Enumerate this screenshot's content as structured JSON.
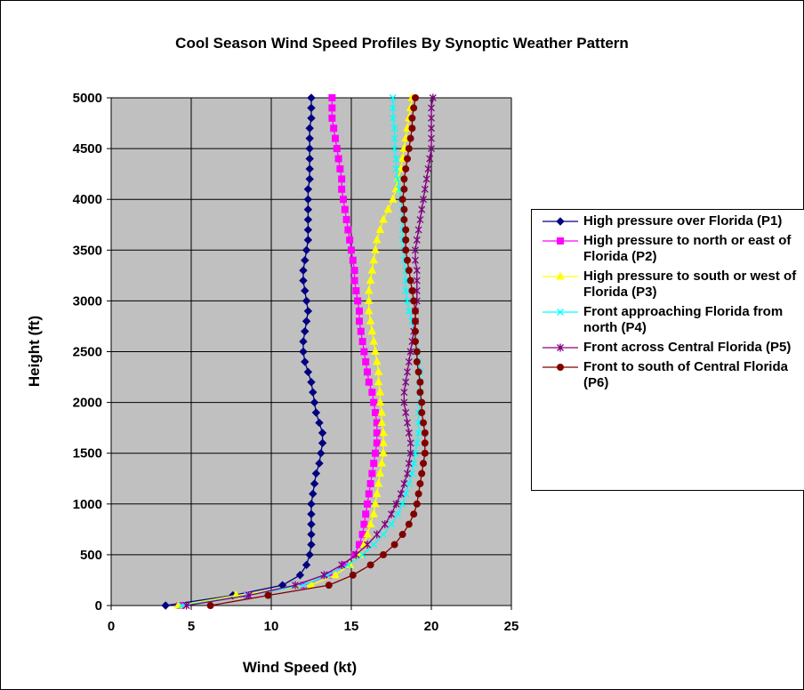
{
  "chart_data": {
    "type": "line",
    "title": "Cool Season Wind Speed Profiles By Synoptic Weather Pattern",
    "xlabel": "Wind Speed (kt)",
    "ylabel": "Height (ft)",
    "xlim": [
      0,
      25
    ],
    "xticks": [
      0,
      5,
      10,
      15,
      20,
      25
    ],
    "ylim": [
      0,
      5000
    ],
    "yticks": [
      0,
      500,
      1000,
      1500,
      2000,
      2500,
      3000,
      3500,
      4000,
      4500,
      5000
    ],
    "grid": true,
    "legend": "right",
    "background": "#c0c0c0",
    "y": [
      0,
      100,
      200,
      300,
      400,
      500,
      600,
      700,
      800,
      900,
      1000,
      1100,
      1200,
      1300,
      1400,
      1500,
      1600,
      1700,
      1800,
      1900,
      2000,
      2100,
      2200,
      2300,
      2400,
      2500,
      2600,
      2700,
      2800,
      2900,
      3000,
      3100,
      3200,
      3300,
      3400,
      3500,
      3600,
      3700,
      3800,
      3900,
      4000,
      4100,
      4200,
      4300,
      4400,
      4500,
      4600,
      4700,
      4800,
      4900,
      5000
    ],
    "series": [
      {
        "name": "High pressure over Florida (P1)",
        "color": "#000080",
        "marker": "diamond",
        "x": [
          3.4,
          7.6,
          10.7,
          11.8,
          12.2,
          12.4,
          12.5,
          12.5,
          12.5,
          12.5,
          12.5,
          12.6,
          12.7,
          12.8,
          13.0,
          13.1,
          13.2,
          13.2,
          13.0,
          12.8,
          12.7,
          12.6,
          12.5,
          12.3,
          12.1,
          12.0,
          12.0,
          12.1,
          12.2,
          12.3,
          12.2,
          12.1,
          12.0,
          12.0,
          12.1,
          12.2,
          12.3,
          12.3,
          12.3,
          12.3,
          12.3,
          12.3,
          12.4,
          12.4,
          12.4,
          12.4,
          12.4,
          12.4,
          12.5,
          12.5,
          12.5
        ]
      },
      {
        "name": "High pressure to north or east of Florida (P2)",
        "color": "#ff00ff",
        "marker": "square",
        "x": [
          4.3,
          8.5,
          12.0,
          13.6,
          14.6,
          15.2,
          15.5,
          15.7,
          15.8,
          15.9,
          16.0,
          16.1,
          16.2,
          16.3,
          16.4,
          16.5,
          16.6,
          16.6,
          16.6,
          16.5,
          16.4,
          16.3,
          16.1,
          16.0,
          15.9,
          15.8,
          15.7,
          15.6,
          15.5,
          15.5,
          15.4,
          15.3,
          15.2,
          15.2,
          15.1,
          15.0,
          14.9,
          14.8,
          14.7,
          14.6,
          14.5,
          14.4,
          14.4,
          14.3,
          14.2,
          14.1,
          14.0,
          13.9,
          13.8,
          13.8,
          13.8
        ]
      },
      {
        "name": "High pressure to south or west of Florida (P3)",
        "color": "#ffff00",
        "marker": "triangle",
        "x": [
          4.2,
          7.8,
          12.5,
          14.0,
          14.9,
          15.5,
          15.8,
          16.0,
          16.2,
          16.4,
          16.5,
          16.6,
          16.7,
          16.8,
          16.9,
          17.0,
          17.0,
          17.0,
          16.9,
          16.9,
          16.8,
          16.8,
          16.7,
          16.7,
          16.6,
          16.5,
          16.4,
          16.3,
          16.2,
          16.1,
          16.1,
          16.1,
          16.2,
          16.3,
          16.4,
          16.5,
          16.6,
          16.8,
          17.0,
          17.3,
          17.6,
          17.8,
          17.9,
          18.1,
          18.2,
          18.3,
          18.4,
          18.5,
          18.6,
          18.7,
          18.8
        ]
      },
      {
        "name": "Front approaching Florida from north (P4)",
        "color": "#00ffff",
        "marker": "cross",
        "x": [
          4.4,
          8.5,
          12.0,
          13.5,
          14.8,
          15.7,
          16.4,
          17.0,
          17.5,
          17.9,
          18.2,
          18.4,
          18.6,
          18.8,
          18.9,
          19.0,
          19.1,
          19.2,
          19.2,
          19.2,
          19.3,
          19.3,
          19.3,
          19.3,
          19.2,
          19.1,
          19.0,
          18.9,
          18.8,
          18.6,
          18.5,
          18.4,
          18.4,
          18.4,
          18.3,
          18.3,
          18.2,
          18.2,
          18.2,
          18.2,
          18.1,
          18.0,
          17.9,
          17.8,
          17.8,
          17.7,
          17.7,
          17.7,
          17.6,
          17.6,
          17.6
        ]
      },
      {
        "name": "Front across Central Florida (P5)",
        "color": "#800080",
        "marker": "star",
        "x": [
          4.7,
          8.6,
          11.5,
          13.3,
          14.4,
          15.3,
          16.0,
          16.6,
          17.1,
          17.5,
          17.8,
          18.1,
          18.3,
          18.5,
          18.6,
          18.7,
          18.7,
          18.6,
          18.5,
          18.4,
          18.3,
          18.3,
          18.4,
          18.5,
          18.6,
          18.7,
          18.8,
          18.9,
          19.0,
          19.0,
          19.1,
          19.1,
          19.1,
          19.1,
          19.0,
          19.0,
          19.1,
          19.2,
          19.3,
          19.4,
          19.5,
          19.6,
          19.7,
          19.8,
          19.9,
          20.0,
          20.0,
          20.0,
          20.0,
          20.0,
          20.1
        ]
      },
      {
        "name": "Front to south of Central Florida (P6)",
        "color": "#800000",
        "marker": "circle",
        "x": [
          6.2,
          9.8,
          13.6,
          15.1,
          16.2,
          17.0,
          17.7,
          18.2,
          18.6,
          18.9,
          19.1,
          19.2,
          19.3,
          19.4,
          19.5,
          19.6,
          19.6,
          19.6,
          19.5,
          19.4,
          19.4,
          19.3,
          19.3,
          19.2,
          19.1,
          19.1,
          19.0,
          19.0,
          19.0,
          19.0,
          18.9,
          18.8,
          18.7,
          18.6,
          18.5,
          18.4,
          18.4,
          18.4,
          18.3,
          18.3,
          18.2,
          18.3,
          18.3,
          18.4,
          18.5,
          18.6,
          18.7,
          18.8,
          18.8,
          18.9,
          19.0
        ]
      }
    ]
  }
}
